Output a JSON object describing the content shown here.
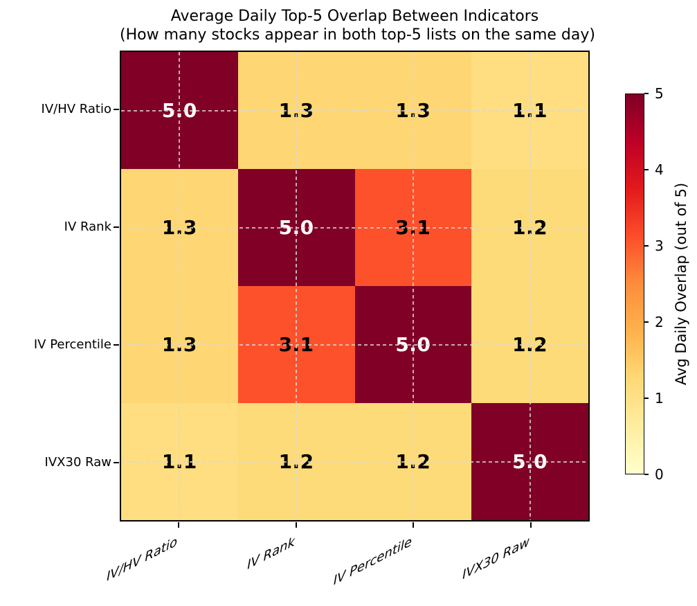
{
  "chart_data": {
    "type": "heatmap",
    "title": "Average Daily Top-5 Overlap Between Indicators",
    "subtitle": "(How many stocks appear in both top-5 lists on the same day)",
    "categories": [
      "IV/HV Ratio",
      "IV Rank",
      "IV Percentile",
      "IVX30 Raw"
    ],
    "matrix": [
      [
        5.0,
        1.3,
        1.3,
        1.1
      ],
      [
        1.3,
        5.0,
        3.1,
        1.2
      ],
      [
        1.3,
        3.1,
        5.0,
        1.2
      ],
      [
        1.1,
        1.2,
        1.2,
        5.0
      ]
    ],
    "value_decimals": 1,
    "vmin": 0,
    "vmax": 5,
    "grid": "dashed lines through cell centers",
    "legend_position": "right colorbar",
    "colorbar": {
      "label": "Avg Daily Overlap (out of 5)",
      "ticks": [
        0,
        1,
        2,
        3,
        4,
        5
      ]
    },
    "colormap": {
      "name": "YlOrRd",
      "stops": [
        {
          "t": 0.0,
          "c": "#ffffcc"
        },
        {
          "t": 0.125,
          "c": "#ffeda0"
        },
        {
          "t": 0.25,
          "c": "#fed976"
        },
        {
          "t": 0.375,
          "c": "#feb24c"
        },
        {
          "t": 0.5,
          "c": "#fd8d3c"
        },
        {
          "t": 0.625,
          "c": "#fc4e2a"
        },
        {
          "t": 0.75,
          "c": "#e31a1c"
        },
        {
          "t": 0.875,
          "c": "#bd0026"
        },
        {
          "t": 1.0,
          "c": "#800026"
        }
      ],
      "high_value_text_color": "#ffffff",
      "low_value_text_color": "#000000"
    }
  }
}
